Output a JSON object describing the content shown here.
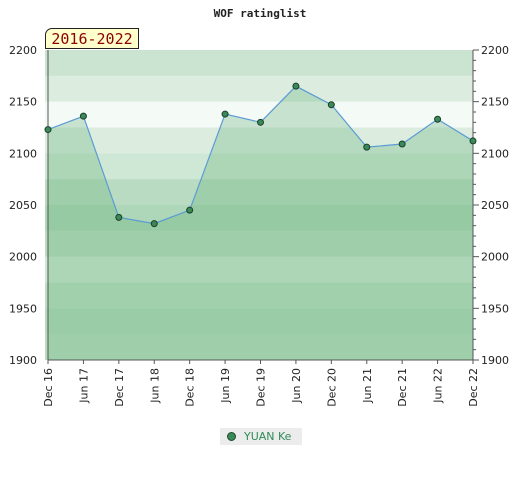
{
  "chart_data": {
    "type": "area",
    "title": "WOF ratinglist",
    "period": "2016-2022",
    "categories": [
      "Dec 16",
      "Jun 17",
      "Dec 17",
      "Jun 18",
      "Dec 18",
      "Jun 19",
      "Dec 19",
      "Jun 20",
      "Dec 20",
      "Jun 21",
      "Dec 21",
      "Jun 22",
      "Dec 22"
    ],
    "series": [
      {
        "name": "YUAN Ke",
        "values": [
          2123,
          2136,
          2038,
          2032,
          2045,
          2138,
          2130,
          2165,
          2147,
          2106,
          2109,
          2133,
          2112
        ]
      }
    ],
    "ylim": [
      1900,
      2200
    ],
    "yticks": [
      1900,
      1950,
      2000,
      2050,
      2100,
      2150,
      2200
    ],
    "grid": true,
    "legend_position": "bottom",
    "colors": {
      "line": "#5b9bd5",
      "marker": "#3a8a58",
      "fill": "#5fae73"
    }
  }
}
